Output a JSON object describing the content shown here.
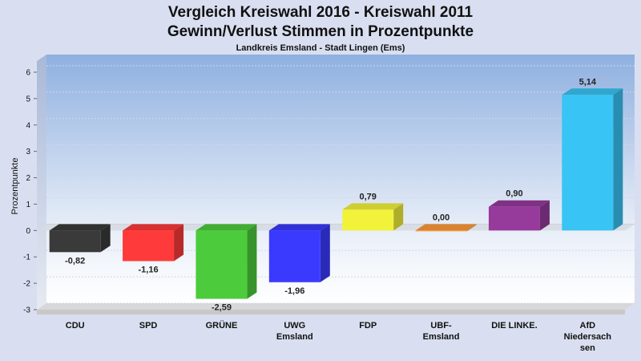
{
  "chart_data": {
    "type": "bar",
    "title_line1": "Vergleich Kreiswahl 2016 - Kreiswahl 2011",
    "title_line2": "Gewinn/Verlust Stimmen in Prozentpunkte",
    "subtitle": "Landkreis Emsland - Stadt Lingen (Ems)",
    "ylabel": "Prozentpunkte",
    "xlabel": "",
    "ylim": [
      -3,
      6
    ],
    "yticks": [
      "6",
      "5",
      "4",
      "3",
      "2",
      "1",
      "0",
      "-1",
      "-2",
      "-3"
    ],
    "categories": [
      [
        "CDU"
      ],
      [
        "SPD"
      ],
      [
        "GRÜNE"
      ],
      [
        "UWG",
        "Emsland"
      ],
      [
        "FDP"
      ],
      [
        "UBF-",
        "Emsland"
      ],
      [
        "DIE LINKE."
      ],
      [
        "AfD",
        "Niedersach",
        "sen"
      ]
    ],
    "values": [
      -0.82,
      -1.16,
      -2.59,
      -1.96,
      0.79,
      0.0,
      0.9,
      5.14
    ],
    "value_labels": [
      "-0,82",
      "-1,16",
      "-2,59",
      "-1,96",
      "0,79",
      "0,00",
      "0,90",
      "5,14"
    ],
    "colors": [
      "#3a3a3a",
      "#ff3a3a",
      "#4ccc3c",
      "#3a3aff",
      "#f2f23a",
      "#ff9a3a",
      "#963a9c",
      "#38c4f4"
    ],
    "grid": true,
    "legend": "none"
  }
}
